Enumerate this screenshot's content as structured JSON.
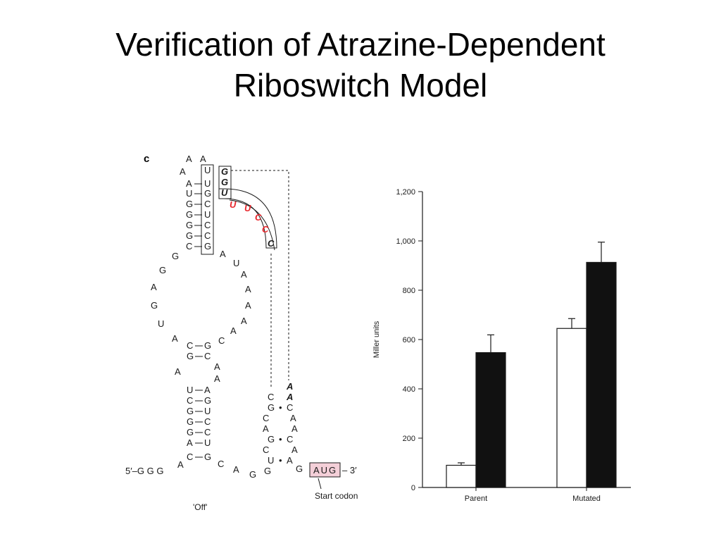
{
  "slide": {
    "title_line1": "Verification of Atrazine-Dependent",
    "title_line2": "Riboswitch Model"
  },
  "diagram": {
    "panel_label": "c",
    "state_label": "'Off'",
    "start_codon_label": "Start codon",
    "five_prime": "5′–G G G",
    "three_prime": "– 3′",
    "start_codon": "AUG",
    "colors": {
      "highlight": "#e8252b",
      "codon_box": "#f4cfd8"
    }
  },
  "chart_data": {
    "type": "bar",
    "categories": [
      "Parent",
      "Mutated"
    ],
    "series": [
      {
        "values": [
          90,
          645
        ],
        "errors": [
          10,
          40
        ],
        "fill": "#ffffff"
      },
      {
        "values": [
          547,
          913
        ],
        "errors": [
          72,
          82
        ],
        "fill": "#111111"
      }
    ],
    "ylabel": "Miller units",
    "ylim": [
      0,
      1200
    ],
    "yticks": [
      0,
      200,
      400,
      600,
      800,
      1000,
      1200
    ],
    "ytick_labels": [
      "0",
      "200",
      "400",
      "600",
      "800",
      "1,000",
      "1,200"
    ]
  }
}
